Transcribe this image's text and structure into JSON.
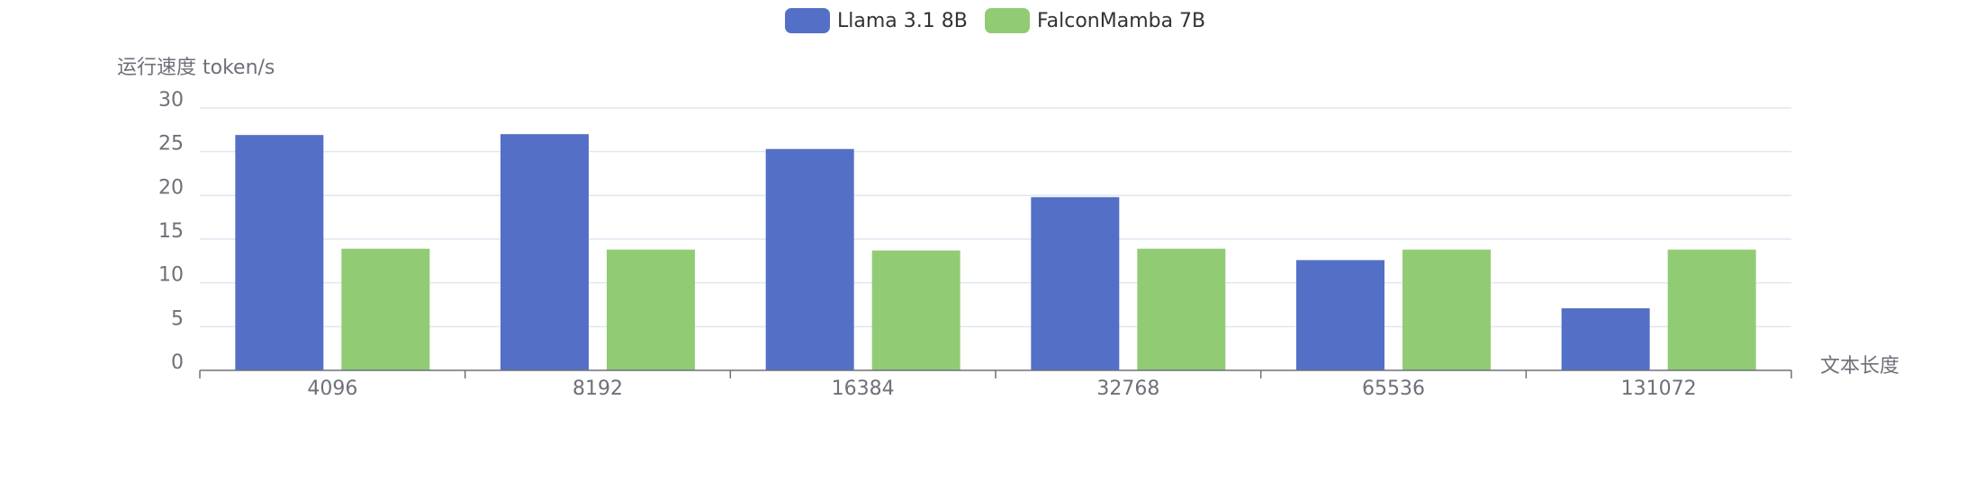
{
  "chart_data": {
    "type": "bar",
    "ylabel": "运行速度 token/s",
    "xlabel": "文本长度",
    "categories": [
      "4096",
      "8192",
      "16384",
      "32768",
      "65536",
      "131072"
    ],
    "ylim": [
      0,
      30
    ],
    "yticks": [
      0,
      5,
      10,
      15,
      20,
      25,
      30
    ],
    "grid": true,
    "legend_position": "top-center",
    "series": [
      {
        "name": "Llama 3.1 8B",
        "color": "#5470c6",
        "values": [
          26.9,
          27.0,
          25.3,
          19.8,
          12.6,
          7.1
        ]
      },
      {
        "name": "FalconMamba 7B",
        "color": "#91cc75",
        "values": [
          13.9,
          13.8,
          13.7,
          13.9,
          13.8,
          13.8
        ]
      }
    ]
  }
}
